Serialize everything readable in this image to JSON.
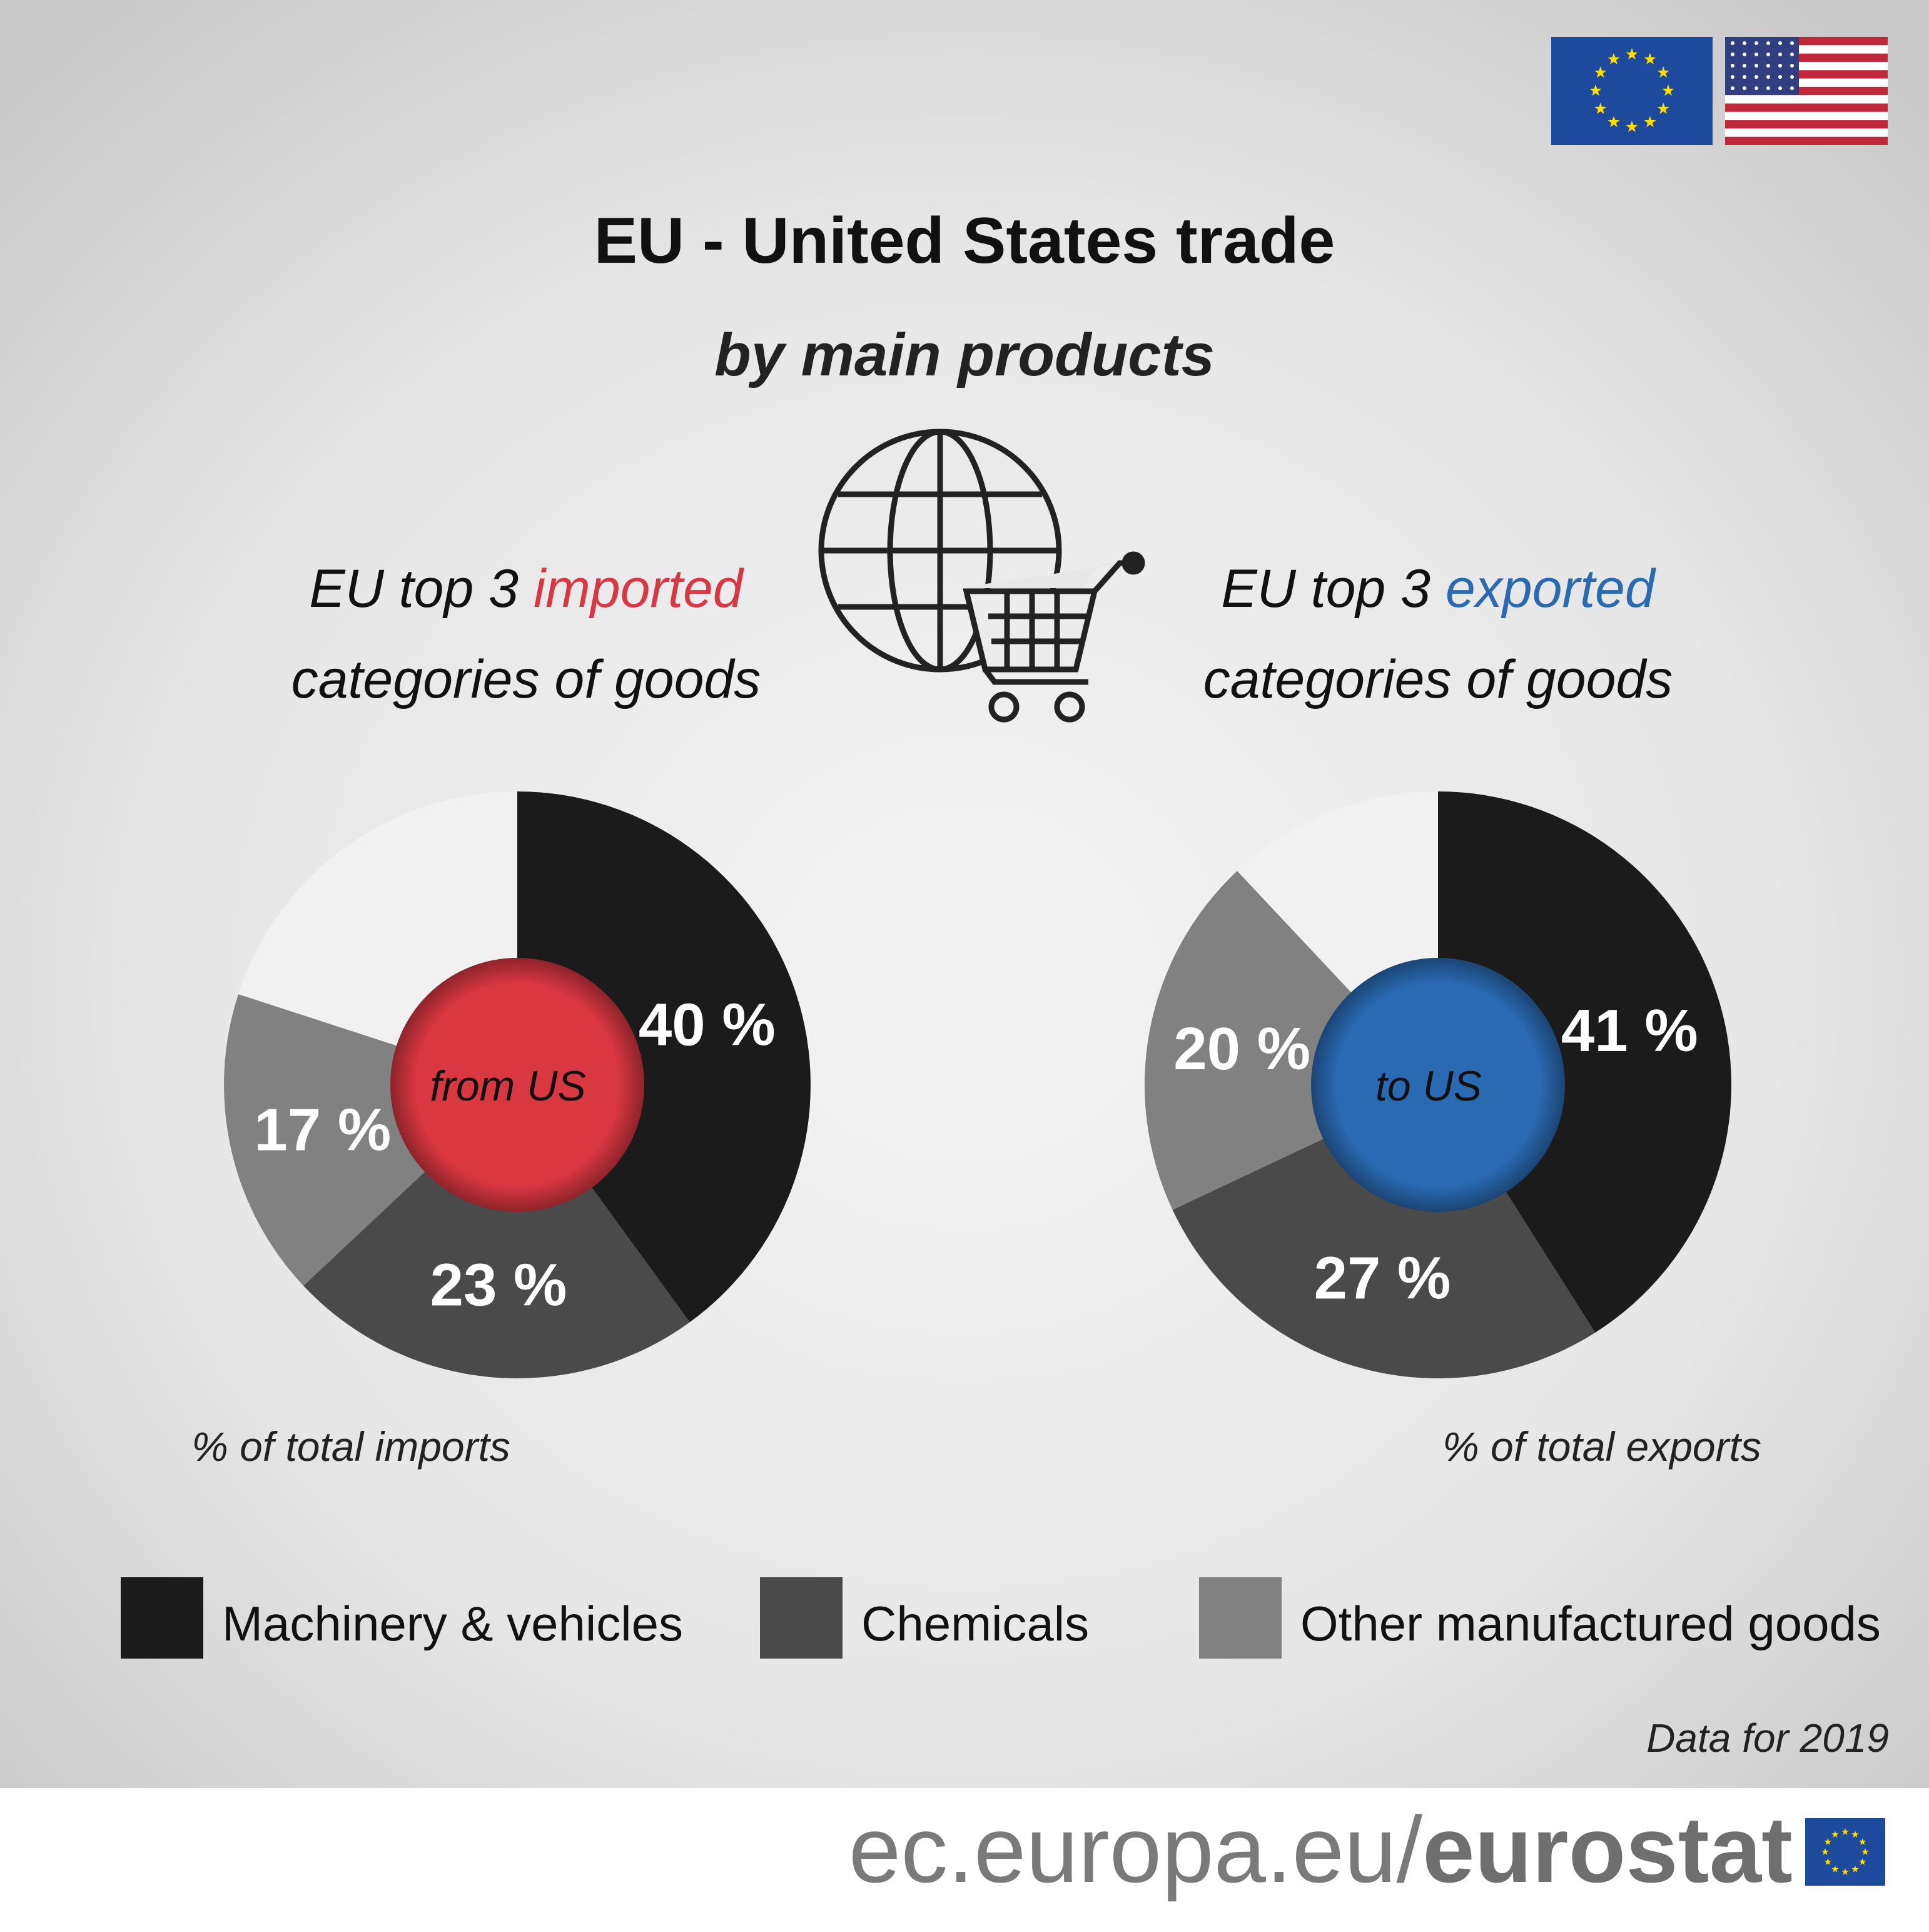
{
  "chart_data": {
    "type": "pie",
    "title": "EU - United States trade",
    "subtitle": "by main products",
    "categories": [
      "Machinery & vehicles",
      "Chemicals",
      "Other manufactured goods"
    ],
    "colors": [
      "#1b1b1b",
      "#4a4a4a",
      "#818181"
    ],
    "series": [
      {
        "heading": {
          "before": "EU top 3",
          "highlight": "imported",
          "after": "categories of goods"
        },
        "highlight_color": "#d93742",
        "center_label": "from US",
        "note": "% of total imports",
        "values": [
          40,
          23,
          17
        ],
        "value_labels": [
          "40 %",
          "23 %",
          "17 %"
        ]
      },
      {
        "heading": {
          "before": "EU top 3",
          "highlight": "exported",
          "after": "categories of goods"
        },
        "highlight_color": "#2a6ab3",
        "center_label": "to US",
        "note": "% of total exports",
        "values": [
          41,
          27,
          20
        ],
        "value_labels": [
          "41 %",
          "27 %",
          "20 %"
        ]
      }
    ],
    "source_note": "Data for 2019",
    "footer": {
      "domain": "ec.europa.eu/",
      "brand": "eurostat"
    }
  }
}
